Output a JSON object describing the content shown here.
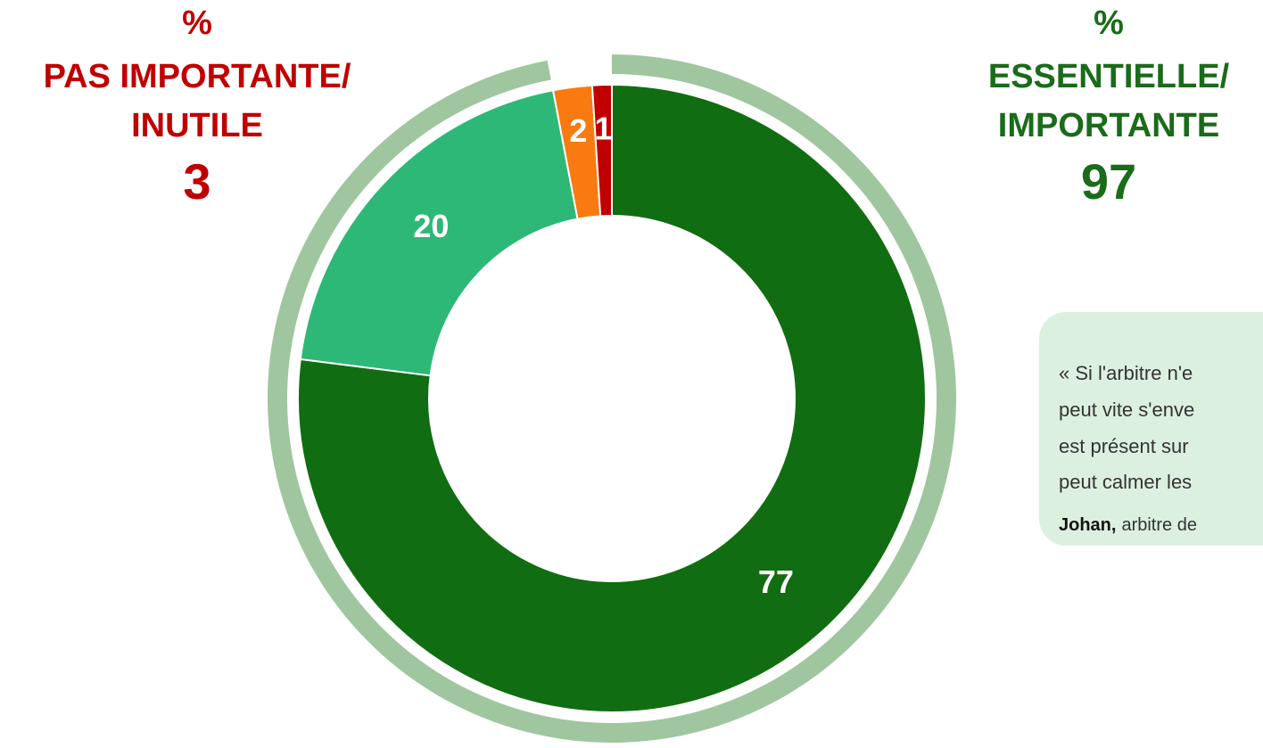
{
  "chart_data": {
    "type": "donut",
    "values": [
      77,
      20,
      2,
      1
    ],
    "colors": [
      "#116d11",
      "#2eb877",
      "#f97a10",
      "#c00000"
    ],
    "ring_color": "#a0c6a0",
    "summaries": [
      {
        "symbol": "%",
        "label": [
          "PAS IMPORTANTE/",
          "INUTILE"
        ],
        "value": 3,
        "color": "#c00000"
      },
      {
        "symbol": "%",
        "label": [
          "ESSENTIELLE/",
          "IMPORTANTE"
        ],
        "value": 97,
        "color": "#1a6b1a"
      }
    ]
  },
  "quote": {
    "lines": [
      "« Si l'arbitre n'e",
      "peut vite s'enve",
      "est présent sur",
      "peut calmer les"
    ],
    "author": "Johan,",
    "role": "arbitre de"
  }
}
